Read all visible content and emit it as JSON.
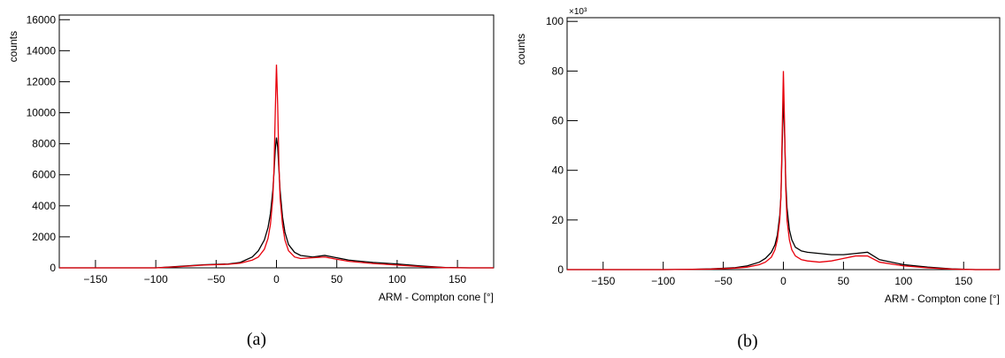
{
  "chart_data": [
    {
      "type": "line",
      "caption": "(a)",
      "y_label": "counts",
      "x_label": "ARM - Compton cone [°]",
      "x": [
        -180,
        -100,
        -80,
        -60,
        -40,
        -30,
        -20,
        -15,
        -10,
        -7,
        -5,
        -3,
        -2,
        -1,
        0,
        1,
        2,
        3,
        5,
        7,
        10,
        15,
        20,
        30,
        40,
        50,
        60,
        70,
        80,
        100,
        120,
        140,
        160,
        180
      ],
      "series": [
        {
          "color": "#000000",
          "values": [
            0,
            0,
            100,
            200,
            250,
            350,
            700,
            1100,
            1800,
            2600,
            3500,
            5000,
            6200,
            7600,
            8400,
            7800,
            6400,
            5000,
            3300,
            2300,
            1500,
            1000,
            800,
            700,
            800,
            650,
            500,
            420,
            350,
            250,
            120,
            20,
            0,
            0
          ]
        },
        {
          "color": "#e8000b",
          "values": [
            0,
            0,
            80,
            180,
            230,
            300,
            500,
            700,
            1200,
            1900,
            2800,
            4500,
            6500,
            10000,
            13100,
            10500,
            6800,
            4500,
            2800,
            1800,
            1100,
            700,
            600,
            650,
            700,
            550,
            420,
            350,
            280,
            180,
            80,
            10,
            0,
            0
          ]
        }
      ],
      "xlim": [
        -180,
        180
      ],
      "xticks": [
        {
          "value": -150,
          "label": "−150"
        },
        {
          "value": -100,
          "label": "−100"
        },
        {
          "value": -50,
          "label": "−50"
        },
        0,
        50,
        100,
        150
      ],
      "ylim": [
        0,
        16300
      ],
      "yticks": [
        0,
        2000,
        4000,
        6000,
        8000,
        10000,
        12000,
        14000,
        16000
      ]
    },
    {
      "type": "line",
      "caption": "(b)",
      "y_label": "counts",
      "x_label": "ARM - Compton cone [°]",
      "y_multiplier": "×10³",
      "x": [
        -180,
        -100,
        -80,
        -60,
        -40,
        -30,
        -20,
        -15,
        -10,
        -7,
        -5,
        -3,
        -2,
        -1,
        0,
        1,
        2,
        3,
        5,
        7,
        10,
        15,
        20,
        30,
        40,
        50,
        60,
        70,
        80,
        100,
        120,
        140,
        160,
        180
      ],
      "series": [
        {
          "color": "#000000",
          "values": [
            0,
            0,
            0.1,
            0.3,
            0.8,
            1.5,
            3,
            4.5,
            7,
            10,
            14,
            22,
            30,
            50,
            70,
            55,
            35,
            25,
            16,
            12,
            9,
            7.5,
            7,
            6.5,
            6,
            6,
            6.5,
            7,
            4,
            2,
            1,
            0.3,
            0,
            0
          ]
        },
        {
          "color": "#e8000b",
          "values": [
            0,
            0,
            0.1,
            0.2,
            0.6,
            1,
            2,
            3,
            5,
            8,
            12,
            20,
            30,
            55,
            80,
            58,
            32,
            20,
            12,
            8,
            5.5,
            4,
            3.5,
            3,
            3.5,
            4.5,
            5.5,
            5.5,
            3,
            1.5,
            0.7,
            0.2,
            0,
            0
          ]
        }
      ],
      "xlim": [
        -180,
        180
      ],
      "xticks": [
        {
          "value": -150,
          "label": "−150"
        },
        {
          "value": -100,
          "label": "−100"
        },
        {
          "value": -50,
          "label": "−50"
        },
        0,
        50,
        100,
        150
      ],
      "ylim": [
        0,
        101.5
      ],
      "yticks": [
        0,
        20,
        40,
        60,
        80,
        100
      ]
    }
  ]
}
